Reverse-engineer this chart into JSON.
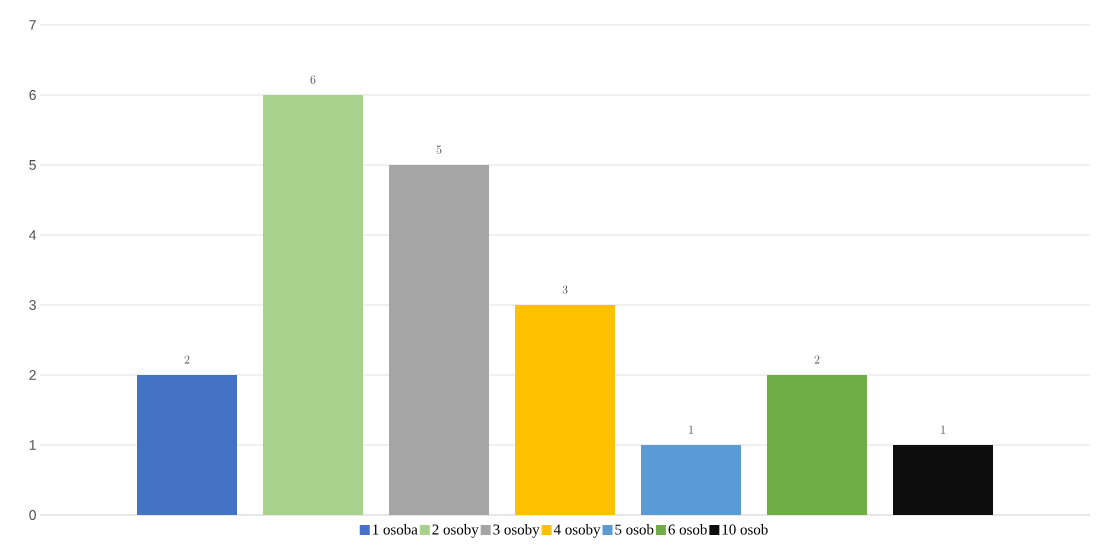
{
  "chart_data": {
    "type": "bar",
    "categories": [
      null
    ],
    "series": [
      {
        "name": "1 osoba",
        "color": "#4472c4",
        "values": [
          2
        ]
      },
      {
        "name": "2 osoby",
        "color": "#a9d18e",
        "values": [
          6
        ]
      },
      {
        "name": "3 osoby",
        "color": "#a5a5a5",
        "values": [
          5
        ]
      },
      {
        "name": "4 osoby",
        "color": "#ffc000",
        "values": [
          3
        ]
      },
      {
        "name": "5 osob",
        "color": "#5b9bd5",
        "values": [
          1
        ]
      },
      {
        "name": "6 osob",
        "color": "#70ad47",
        "values": [
          2
        ]
      },
      {
        "name": "10 osob",
        "color": "#0d0d0d",
        "values": [
          1
        ]
      }
    ],
    "ylim": [
      0,
      7
    ],
    "yticks": [
      0,
      1,
      2,
      3,
      4,
      5,
      6,
      7
    ],
    "grid": "y",
    "legend": "bottom",
    "data_labels": true
  }
}
